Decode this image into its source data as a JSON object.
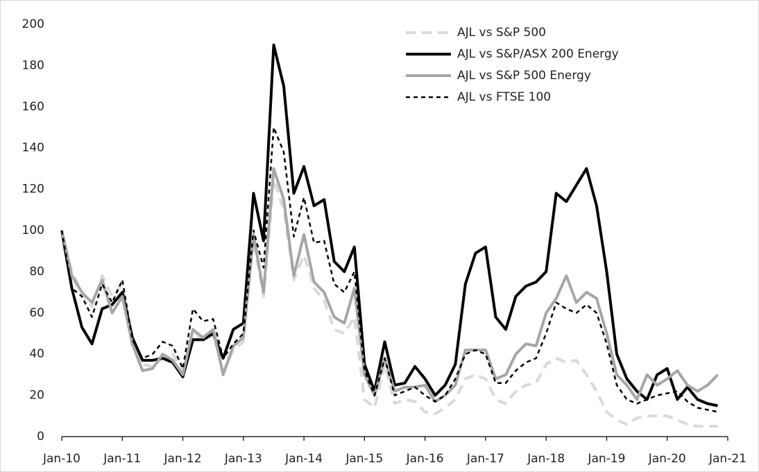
{
  "chart_data": {
    "type": "line",
    "x": [
      "Jan-10",
      "Mar-10",
      "May-10",
      "Jul-10",
      "Sep-10",
      "Nov-10",
      "Jan-11",
      "Mar-11",
      "May-11",
      "Jul-11",
      "Sep-11",
      "Nov-11",
      "Jan-12",
      "Mar-12",
      "May-12",
      "Jul-12",
      "Sep-12",
      "Nov-12",
      "Jan-13",
      "Mar-13",
      "May-13",
      "Jul-13",
      "Sep-13",
      "Nov-13",
      "Jan-14",
      "Mar-14",
      "May-14",
      "Jul-14",
      "Sep-14",
      "Nov-14",
      "Jan-15",
      "Mar-15",
      "May-15",
      "Jul-15",
      "Sep-15",
      "Nov-15",
      "Jan-16",
      "Mar-16",
      "May-16",
      "Jul-16",
      "Sep-16",
      "Nov-16",
      "Jan-17",
      "Mar-17",
      "May-17",
      "Jul-17",
      "Sep-17",
      "Nov-17",
      "Jan-18",
      "Mar-18",
      "May-18",
      "Jul-18",
      "Sep-18",
      "Nov-18",
      "Jan-19",
      "Mar-19",
      "May-19",
      "Jul-19",
      "Sep-19",
      "Nov-19",
      "Jan-20",
      "Mar-20",
      "May-20",
      "Jul-20",
      "Sep-20",
      "Nov-20"
    ],
    "series": [
      {
        "name": "AJL vs S&P 500",
        "color": "#d9d9d9",
        "dash": "dashed",
        "width": 4,
        "values": [
          100,
          80,
          70,
          63,
          78,
          68,
          74,
          43,
          35,
          34,
          38,
          40,
          32,
          52,
          46,
          50,
          32,
          42,
          46,
          95,
          68,
          125,
          110,
          76,
          88,
          72,
          66,
          52,
          50,
          58,
          18,
          14,
          35,
          16,
          18,
          17,
          12,
          11,
          14,
          18,
          28,
          30,
          28,
          18,
          16,
          22,
          25,
          26,
          35,
          38,
          36,
          37,
          30,
          22,
          12,
          8,
          6,
          9,
          10,
          10,
          10,
          8,
          6,
          5,
          5,
          5
        ]
      },
      {
        "name": "AJL vs S&P/ASX 200 Energy",
        "color": "#000000",
        "dash": "solid",
        "width": 4,
        "values": [
          100,
          72,
          53,
          45,
          62,
          64,
          70,
          48,
          37,
          37,
          38,
          36,
          29,
          47,
          47,
          50,
          38,
          52,
          55,
          118,
          95,
          190,
          170,
          118,
          131,
          112,
          115,
          85,
          80,
          92,
          35,
          22,
          46,
          25,
          26,
          34,
          28,
          20,
          25,
          35,
          74,
          89,
          92,
          58,
          52,
          68,
          73,
          75,
          80,
          118,
          114,
          122,
          130,
          112,
          80,
          40,
          28,
          22,
          18,
          30,
          33,
          18,
          24,
          18,
          16,
          15
        ]
      },
      {
        "name": "AJL vs S&P 500 Energy",
        "color": "#a6a6a6",
        "dash": "solid",
        "width": 4,
        "values": [
          100,
          78,
          70,
          65,
          76,
          60,
          68,
          45,
          32,
          33,
          40,
          37,
          30,
          52,
          48,
          52,
          30,
          44,
          48,
          98,
          70,
          130,
          115,
          78,
          98,
          75,
          70,
          58,
          55,
          72,
          30,
          20,
          38,
          22,
          24,
          24,
          25,
          17,
          20,
          25,
          42,
          42,
          42,
          28,
          30,
          40,
          45,
          44,
          60,
          67,
          78,
          65,
          70,
          67,
          50,
          30,
          25,
          18,
          30,
          25,
          28,
          32,
          25,
          22,
          25,
          30
        ]
      },
      {
        "name": "AJL vs FTSE 100",
        "color": "#000000",
        "dash": "dotted",
        "width": 2.5,
        "values": [
          100,
          72,
          68,
          58,
          74,
          65,
          76,
          47,
          38,
          40,
          46,
          44,
          33,
          62,
          56,
          57,
          38,
          45,
          50,
          100,
          82,
          150,
          138,
          97,
          116,
          94,
          95,
          74,
          70,
          80,
          32,
          20,
          38,
          20,
          22,
          24,
          20,
          17,
          20,
          28,
          40,
          42,
          40,
          26,
          26,
          32,
          36,
          38,
          50,
          65,
          62,
          60,
          64,
          60,
          45,
          25,
          18,
          16,
          18,
          20,
          21,
          22,
          17,
          14,
          13,
          12
        ]
      }
    ],
    "xlim": [
      "Jan-10",
      "Jan-21"
    ],
    "xticks": [
      "Jan-10",
      "Jan-11",
      "Jan-12",
      "Jan-13",
      "Jan-14",
      "Jan-15",
      "Jan-16",
      "Jan-17",
      "Jan-18",
      "Jan-19",
      "Jan-20",
      "Jan-21"
    ],
    "ylim": [
      0,
      200
    ],
    "yticks": [
      0,
      20,
      40,
      60,
      80,
      100,
      120,
      140,
      160,
      180,
      200
    ],
    "grid": false,
    "legend": "top-right"
  }
}
